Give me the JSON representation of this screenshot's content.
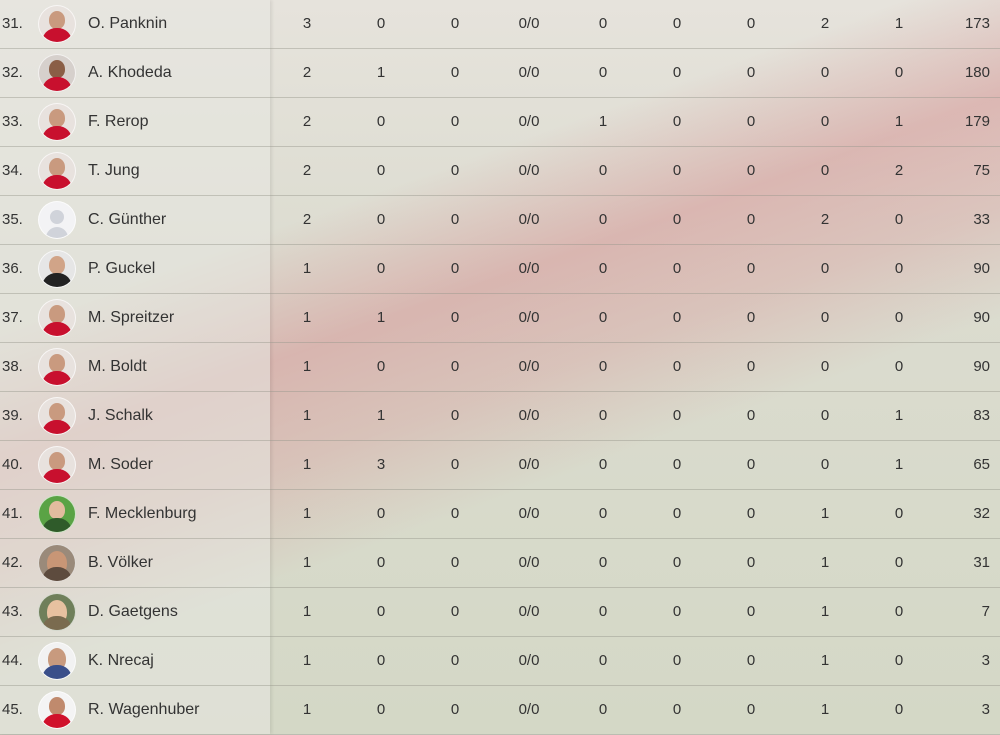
{
  "rows": [
    {
      "rank": "31.",
      "name": "O. Panknin",
      "avatar": "av-red",
      "stats": [
        "3",
        "0",
        "0",
        "0/0",
        "0",
        "0",
        "0",
        "2",
        "1",
        "173"
      ]
    },
    {
      "rank": "32.",
      "name": "A. Khodeda",
      "avatar": "av-dark",
      "stats": [
        "2",
        "1",
        "0",
        "0/0",
        "0",
        "0",
        "0",
        "0",
        "0",
        "180"
      ]
    },
    {
      "rank": "33.",
      "name": "F. Rerop",
      "avatar": "av-red",
      "stats": [
        "2",
        "0",
        "0",
        "0/0",
        "1",
        "0",
        "0",
        "0",
        "1",
        "179"
      ]
    },
    {
      "rank": "34.",
      "name": "T. Jung",
      "avatar": "av-red",
      "stats": [
        "2",
        "0",
        "0",
        "0/0",
        "0",
        "0",
        "0",
        "0",
        "2",
        "75"
      ]
    },
    {
      "rank": "35.",
      "name": "C. Günther",
      "avatar": "av-blank",
      "stats": [
        "2",
        "0",
        "0",
        "0/0",
        "0",
        "0",
        "0",
        "2",
        "0",
        "33"
      ]
    },
    {
      "rank": "36.",
      "name": "P. Guckel",
      "avatar": "av-black",
      "stats": [
        "1",
        "0",
        "0",
        "0/0",
        "0",
        "0",
        "0",
        "0",
        "0",
        "90"
      ]
    },
    {
      "rank": "37.",
      "name": "M. Spreitzer",
      "avatar": "av-red",
      "stats": [
        "1",
        "1",
        "0",
        "0/0",
        "0",
        "0",
        "0",
        "0",
        "0",
        "90"
      ]
    },
    {
      "rank": "38.",
      "name": "M. Boldt",
      "avatar": "av-red",
      "stats": [
        "1",
        "0",
        "0",
        "0/0",
        "0",
        "0",
        "0",
        "0",
        "0",
        "90"
      ]
    },
    {
      "rank": "39.",
      "name": "J. Schalk",
      "avatar": "av-red",
      "stats": [
        "1",
        "1",
        "0",
        "0/0",
        "0",
        "0",
        "0",
        "0",
        "1",
        "83"
      ]
    },
    {
      "rank": "40.",
      "name": "M. Soder",
      "avatar": "av-red",
      "stats": [
        "1",
        "3",
        "0",
        "0/0",
        "0",
        "0",
        "0",
        "0",
        "1",
        "65"
      ]
    },
    {
      "rank": "41.",
      "name": "F. Mecklenburg",
      "avatar": "av-green",
      "stats": [
        "1",
        "0",
        "0",
        "0/0",
        "0",
        "0",
        "0",
        "1",
        "0",
        "32"
      ]
    },
    {
      "rank": "42.",
      "name": "B. Völker",
      "avatar": "av-plain",
      "stats": [
        "1",
        "0",
        "0",
        "0/0",
        "0",
        "0",
        "0",
        "1",
        "0",
        "31"
      ]
    },
    {
      "rank": "43.",
      "name": "D. Gaetgens",
      "avatar": "av-fair",
      "stats": [
        "1",
        "0",
        "0",
        "0/0",
        "0",
        "0",
        "0",
        "1",
        "0",
        "7"
      ]
    },
    {
      "rank": "44.",
      "name": "K. Nrecaj",
      "avatar": "av-white",
      "stats": [
        "1",
        "0",
        "0",
        "0/0",
        "0",
        "0",
        "0",
        "1",
        "0",
        "3"
      ]
    },
    {
      "rank": "45.",
      "name": "R. Wagenhuber",
      "avatar": "av-redw",
      "stats": [
        "1",
        "0",
        "0",
        "0/0",
        "0",
        "0",
        "0",
        "1",
        "0",
        "3"
      ]
    }
  ]
}
